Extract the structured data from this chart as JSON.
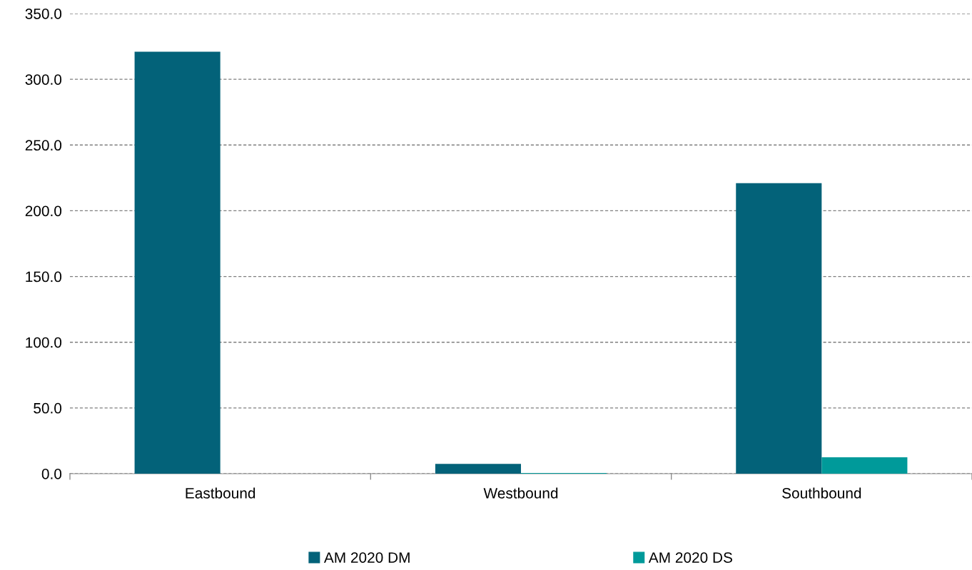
{
  "chart_data": {
    "type": "bar",
    "categories": [
      "Eastbound",
      "Westbound",
      "Southbound"
    ],
    "series": [
      {
        "name": "AM 2020 DM",
        "color": "#036279",
        "values": [
          321,
          7.5,
          221
        ]
      },
      {
        "name": "AM 2020 DS",
        "color": "#009a9a",
        "values": [
          0,
          0.5,
          12.5
        ]
      }
    ],
    "ylim": [
      0,
      350
    ],
    "yticks": [
      {
        "value": 0,
        "label": "0.0"
      },
      {
        "value": 50,
        "label": "50.0"
      },
      {
        "value": 100,
        "label": "100.0"
      },
      {
        "value": 150,
        "label": "150.0"
      },
      {
        "value": 200,
        "label": "200.0"
      },
      {
        "value": 250,
        "label": "250.0"
      },
      {
        "value": 300,
        "label": "300.0"
      },
      {
        "value": 350,
        "label": "350.0"
      }
    ],
    "grid": "y",
    "legend": "bottom"
  }
}
